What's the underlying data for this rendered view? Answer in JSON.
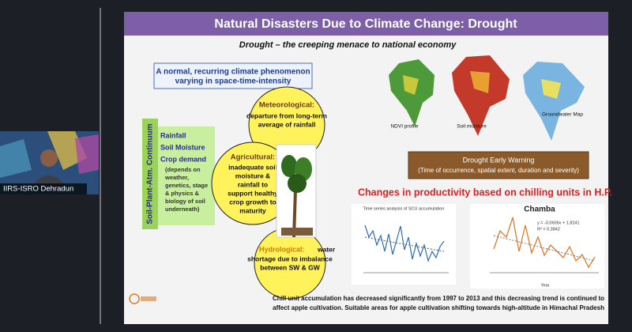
{
  "participant": {
    "name": "IIRS-ISRO Dehradun"
  },
  "slide": {
    "title": "Natural Disasters Due to Climate Change: Drought",
    "subtitle": "Drought – the creeping menace to national economy",
    "definition": [
      "A normal, recurring climate phenomenon",
      "varying in space-time-intensity"
    ],
    "continuum": {
      "label": "Soil-Plant-Atm. Continuum",
      "items": [
        "Rainfall",
        "Soil Moisture",
        "Crop demand"
      ],
      "note": [
        "(depends on",
        "weather,",
        "genetics, stage",
        "& physics &",
        "biology of soil",
        "underneath)"
      ]
    },
    "types": [
      {
        "name": "Meteorological:",
        "text": [
          "departure from long-term",
          "average of rainfall"
        ]
      },
      {
        "name": "Agricultural:",
        "text": [
          "inadequate soil",
          "moisture &",
          "rainfall to",
          "support healthy",
          "crop growth to",
          "maturity"
        ]
      },
      {
        "name": "Hydrological:",
        "text": [
          "water",
          "shortage due to imbalance",
          "between SW & GW"
        ]
      }
    ],
    "maps": [
      "NDVI profile",
      "Soil moisture",
      "Groundwater Map"
    ],
    "early_warning": {
      "title": "Drought Early Warning",
      "detail": "(Time of occurrence, spatial extent, duration and severity)"
    },
    "productivity": {
      "heading": "Changes in productivity based on chilling units in H.P.",
      "chart1_title": "Time series analysis of SCU accumulation",
      "chart2_title": "Chamba",
      "chart2_equation": [
        "y = -0.0606x + 1.8241",
        "R² = 0.3842"
      ],
      "chart2_xlabel": "Year"
    },
    "footer": [
      "Chill unit accumulation has decreased significantly from 1997 to 2013 and this decreasing trend is continued to",
      "affect apple cultivation.  Suitable areas for apple cultivation shifting towards high-altitude in Himachal Pradesh"
    ]
  }
}
